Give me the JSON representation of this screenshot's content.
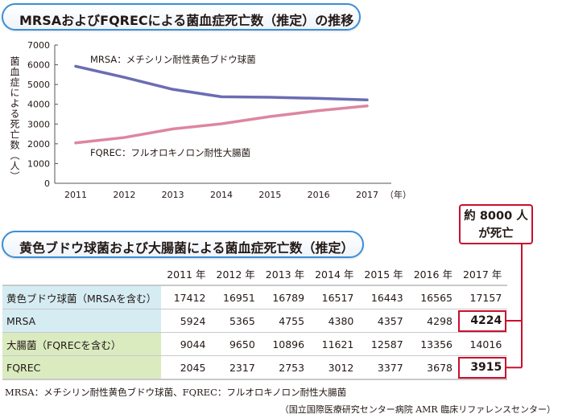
{
  "chart_data": {
    "type": "line",
    "title": "MRSAおよびFQRECによる菌血症死亡数（推定）の推移",
    "ylabel": "菌血症による死亡数（人）",
    "xunit": "（年）",
    "x": [
      2011,
      2012,
      2013,
      2014,
      2015,
      2016,
      2017
    ],
    "ylim": [
      0,
      7000
    ],
    "yticks": [
      0,
      1000,
      2000,
      3000,
      4000,
      5000,
      6000,
      7000
    ],
    "grid": false,
    "series": [
      {
        "name": "MRSA：メチシリン耐性黄色ブドウ球菌",
        "values": [
          5924,
          5365,
          4755,
          4380,
          4357,
          4298,
          4224
        ],
        "color": "#6b6cb3"
      },
      {
        "name": "FQREC：フルオロキノロン耐性大腸菌",
        "values": [
          2045,
          2317,
          2753,
          3012,
          3377,
          3678,
          3915
        ],
        "color": "#dd86a0"
      }
    ]
  },
  "table": {
    "title": "黄色ブドウ球菌および大腸菌による菌血症死亡数（推定）",
    "headers": [
      "",
      "2011 年",
      "2012 年",
      "2013 年",
      "2014 年",
      "2015 年",
      "2016 年",
      "2017 年"
    ],
    "rows": [
      {
        "label": "黄色ブドウ球菌（MRSAを含む）",
        "values": [
          "17412",
          "16951",
          "16789",
          "16517",
          "16443",
          "16565",
          "17157"
        ]
      },
      {
        "label": "MRSA",
        "values": [
          "5924",
          "5365",
          "4755",
          "4380",
          "4357",
          "4298",
          "4224"
        ]
      },
      {
        "label": "大腸菌（FQRECを含む）",
        "values": [
          "9044",
          "9650",
          "10896",
          "11621",
          "12587",
          "13356",
          "14016"
        ]
      },
      {
        "label": "FQREC",
        "values": [
          "2045",
          "2317",
          "2753",
          "3012",
          "3377",
          "3678",
          "3915"
        ]
      }
    ]
  },
  "callout": {
    "line1": "約 8000 人",
    "line2": "が死亡"
  },
  "colors": {
    "accent_red": "#c8102e",
    "pill_border": "#3b8fd6",
    "mrsa_line": "#6b6cb3",
    "fqrec_line": "#dd86a0",
    "row_blue": "#d5ecf3",
    "row_green": "#daebc0"
  },
  "note": "MRSA：メチシリン耐性黄色ブドウ球菌、FQREC：フルオロキノロン耐性大腸菌",
  "source": "（国立国際医療研究センター病院 AMR 臨床リファレンスセンター）"
}
